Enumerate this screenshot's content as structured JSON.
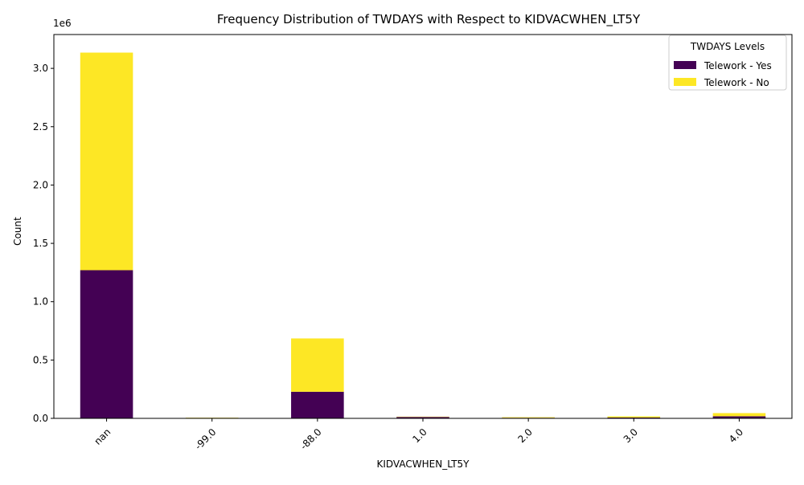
{
  "chart_data": {
    "type": "bar",
    "stacked": true,
    "title": "Frequency Distribution of TWDAYS with Respect to KIDVACWHEN_LT5Y",
    "xlabel": "KIDVACWHEN_LT5Y",
    "ylabel": "Count",
    "y_offset_label": "1e6",
    "categories": [
      "nan",
      "-99.0",
      "-88.0",
      "1.0",
      "2.0",
      "3.0",
      "4.0"
    ],
    "series": [
      {
        "name": "Telework - Yes",
        "color": "#440154",
        "values": [
          1270000,
          4000,
          228000,
          12000,
          5000,
          7000,
          18000
        ]
      },
      {
        "name": "Telework - No",
        "color": "#fde725",
        "values": [
          1865000,
          2000,
          457000,
          3000,
          5000,
          10000,
          27000
        ]
      }
    ],
    "ylim": [
      0,
      3290000
    ],
    "yticks": [
      0,
      500000,
      1000000,
      1500000,
      2000000,
      2500000,
      3000000
    ],
    "ytick_labels": [
      "0.0",
      "0.5",
      "1.0",
      "1.5",
      "2.0",
      "2.5",
      "3.0"
    ],
    "legend": {
      "title": "TWDAYS Levels",
      "placement": "top-right"
    },
    "grid": false
  }
}
